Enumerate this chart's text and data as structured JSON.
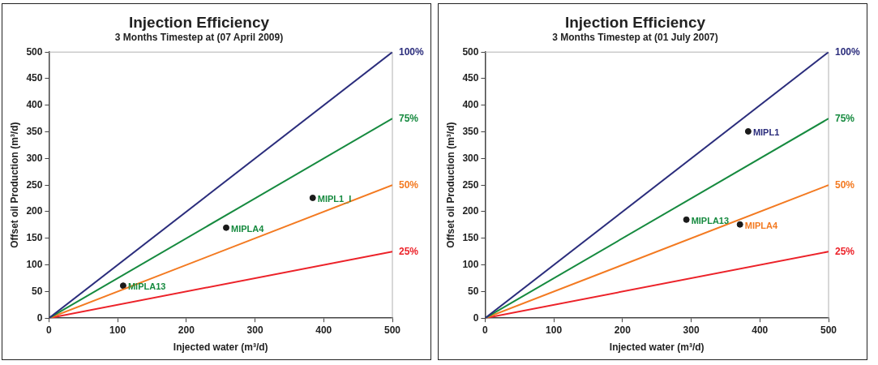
{
  "chart_data": [
    {
      "type": "scatter",
      "title": "Injection Efficiency",
      "subtitle": "3 Months Timestep at (07 April 2009)",
      "xlabel": "Injected water (m³/d)",
      "ylabel": "Offset oil Production (m³/d)",
      "xlim": [
        0,
        500
      ],
      "ylim": [
        0,
        500
      ],
      "xticks": [
        0,
        100,
        200,
        300,
        400,
        500
      ],
      "yticks": [
        0,
        50,
        100,
        150,
        200,
        250,
        300,
        350,
        400,
        450,
        500
      ],
      "grid": false,
      "legend": false,
      "marker": "circle",
      "series": [
        {
          "name": "100%",
          "type": "line",
          "marker": "none",
          "color": "#2b2d7c",
          "x": [
            0,
            500
          ],
          "values": [
            0,
            500
          ]
        },
        {
          "name": "75%",
          "type": "line",
          "marker": "none",
          "color": "#168a3f",
          "x": [
            0,
            500
          ],
          "values": [
            0,
            375
          ]
        },
        {
          "name": "50%",
          "type": "line",
          "marker": "none",
          "color": "#f37a21",
          "x": [
            0,
            500
          ],
          "values": [
            0,
            250
          ]
        },
        {
          "name": "25%",
          "type": "line",
          "marker": "none",
          "color": "#ec2229",
          "x": [
            0,
            500
          ],
          "values": [
            0,
            125
          ]
        },
        {
          "name": "MIPLA13",
          "type": "scatter",
          "color": "#1a1a1a",
          "x": [
            108
          ],
          "values": [
            61
          ]
        },
        {
          "name": "MIPLA4",
          "type": "scatter",
          "color": "#1a1a1a",
          "x": [
            258
          ],
          "values": [
            170
          ]
        },
        {
          "name": "MIPL1_I",
          "type": "scatter",
          "color": "#1a1a1a",
          "x": [
            384
          ],
          "values": [
            226
          ]
        }
      ]
    },
    {
      "type": "scatter",
      "title": "Injection Efficiency",
      "subtitle": "3 Months Timestep at (01 July 2007)",
      "xlabel": "Injected water (m³/d)",
      "ylabel": "Offset oil Production (m³/d)",
      "xlim": [
        0,
        500
      ],
      "ylim": [
        0,
        500
      ],
      "xticks": [
        0,
        100,
        200,
        300,
        400,
        500
      ],
      "yticks": [
        0,
        50,
        100,
        150,
        200,
        250,
        300,
        350,
        400,
        450,
        500
      ],
      "grid": false,
      "legend": false,
      "marker": "circle",
      "series": [
        {
          "name": "100%",
          "type": "line",
          "marker": "none",
          "color": "#2b2d7c",
          "x": [
            0,
            500
          ],
          "values": [
            0,
            500
          ]
        },
        {
          "name": "75%",
          "type": "line",
          "marker": "none",
          "color": "#168a3f",
          "x": [
            0,
            500
          ],
          "values": [
            0,
            375
          ]
        },
        {
          "name": "50%",
          "type": "line",
          "marker": "none",
          "color": "#f37a21",
          "x": [
            0,
            500
          ],
          "values": [
            0,
            250
          ]
        },
        {
          "name": "25%",
          "type": "line",
          "marker": "none",
          "color": "#ec2229",
          "x": [
            0,
            500
          ],
          "values": [
            0,
            125
          ]
        },
        {
          "name": "MIPL1",
          "type": "scatter",
          "color": "#1a1a1a",
          "x": [
            383
          ],
          "values": [
            351
          ]
        },
        {
          "name": "MIPLA13",
          "type": "scatter",
          "color": "#1a1a1a",
          "x": [
            293
          ],
          "values": [
            185
          ]
        },
        {
          "name": "MIPLA4",
          "type": "scatter",
          "color": "#1a1a1a",
          "x": [
            371
          ],
          "values": [
            176
          ]
        }
      ]
    }
  ]
}
